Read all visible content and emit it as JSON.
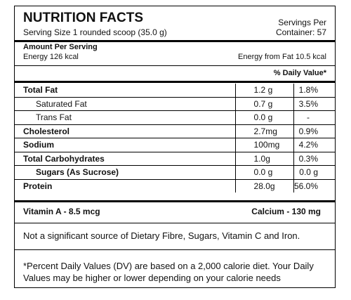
{
  "header": {
    "title": "NUTRITION FACTS",
    "serving_size": "Serving Size 1 rounded scoop (35.0 g)",
    "servings_per": [
      "Servings Per",
      "Container: 57"
    ]
  },
  "amount": {
    "label": "Amount Per Serving",
    "energy": "Energy 126 kcal",
    "energy_from_fat": "Energy from Fat 10.5 kcal"
  },
  "daily_value_header": "% Daily Value*",
  "nutrients": [
    [
      "Total Fat",
      "1.2 g",
      "1.8%"
    ],
    [
      "Saturated Fat",
      "0.7 g",
      "3.5%"
    ],
    [
      "Trans Fat",
      "0.0 g",
      "-"
    ],
    [
      "Cholesterol",
      "2.7mg",
      "0.9%"
    ],
    [
      "Sodium",
      "100mg",
      "4.2%"
    ],
    [
      "Total Carbohydrates",
      "1.0g",
      "0.3%"
    ],
    [
      "Sugars (As Sucrose)",
      "0.0 g",
      "0.0 g"
    ],
    [
      "Protein",
      "28.0g",
      "56.0%"
    ]
  ],
  "vitamins": {
    "left": "Vitamin A - 8.5 mcg",
    "right": "Calcium - 130 mg"
  },
  "note": "Not a significant source of Dietary Fibre, Sugars, Vitamin C and Iron.",
  "footnote": "*Percent Daily Values (DV) are based on a 2,000 calorie diet. Your Daily Values may be higher or lower depending on your calorie needs"
}
